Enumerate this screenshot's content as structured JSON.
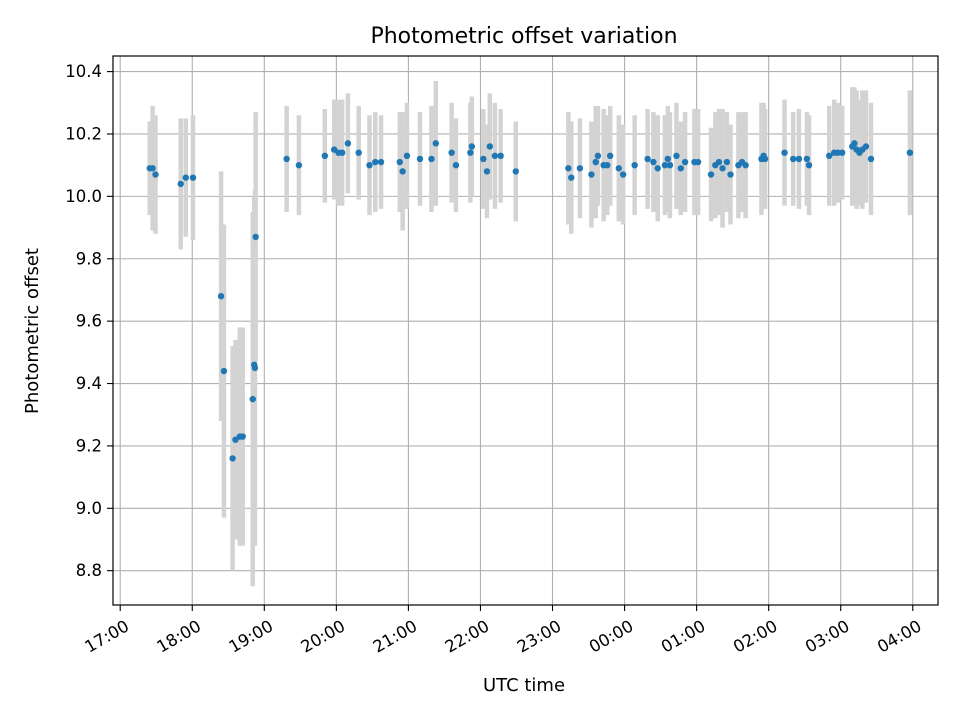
{
  "chart_data": {
    "type": "scatter",
    "title": "Photometric offset variation",
    "xlabel": "UTC time",
    "ylabel": "Photometric offset",
    "x_start": "17:00",
    "xlim": [
      -0.1,
      11.35
    ],
    "ylim": [
      8.69,
      10.45
    ],
    "x_ticks": [
      0,
      1,
      2,
      3,
      4,
      5,
      6,
      7,
      8,
      9,
      10,
      11
    ],
    "x_tick_labels": [
      "17:00",
      "18:00",
      "19:00",
      "20:00",
      "21:00",
      "22:00",
      "23:00",
      "00:00",
      "01:00",
      "02:00",
      "03:00",
      "04:00"
    ],
    "y_ticks": [
      8.8,
      9.0,
      9.2,
      9.4,
      9.6,
      9.8,
      10.0,
      10.2,
      10.4
    ],
    "y_tick_labels": [
      "8.8",
      "9.0",
      "9.2",
      "9.4",
      "9.6",
      "9.8",
      "10.0",
      "10.2",
      "10.4"
    ],
    "grid": true,
    "colors": {
      "point": "#1f77b4",
      "errorbar": "#d3d3d3",
      "grid": "#b0b0b0"
    },
    "series": [
      {
        "points": [
          [
            0.41,
            10.09,
            0.15
          ],
          [
            0.45,
            10.09,
            0.2
          ],
          [
            0.49,
            10.07,
            0.19
          ],
          [
            0.84,
            10.04,
            0.21
          ],
          [
            0.91,
            10.06,
            0.19
          ],
          [
            1.01,
            10.06,
            0.2
          ],
          [
            1.4,
            9.68,
            0.4
          ],
          [
            1.44,
            9.44,
            0.47
          ],
          [
            1.56,
            9.16,
            0.36
          ],
          [
            1.6,
            9.22,
            0.32
          ],
          [
            1.66,
            9.23,
            0.35
          ],
          [
            1.7,
            9.23,
            0.35
          ],
          [
            1.84,
            9.35,
            0.6
          ],
          [
            1.86,
            9.46,
            0.54
          ],
          [
            1.87,
            9.45,
            0.57
          ],
          [
            1.88,
            9.87,
            0.4
          ],
          [
            2.31,
            10.12,
            0.17
          ],
          [
            2.48,
            10.1,
            0.16
          ],
          [
            2.84,
            10.13,
            0.15
          ],
          [
            2.97,
            10.15,
            0.16
          ],
          [
            3.03,
            10.14,
            0.17
          ],
          [
            3.08,
            10.14,
            0.17
          ],
          [
            3.16,
            10.17,
            0.16
          ],
          [
            3.31,
            10.14,
            0.15
          ],
          [
            3.46,
            10.1,
            0.16
          ],
          [
            3.54,
            10.11,
            0.16
          ],
          [
            3.62,
            10.11,
            0.15
          ],
          [
            3.88,
            10.11,
            0.16
          ],
          [
            3.92,
            10.08,
            0.19
          ],
          [
            3.98,
            10.13,
            0.17
          ],
          [
            4.16,
            10.12,
            0.15
          ],
          [
            4.32,
            10.12,
            0.17
          ],
          [
            4.38,
            10.17,
            0.2
          ],
          [
            4.6,
            10.14,
            0.16
          ],
          [
            4.66,
            10.1,
            0.15
          ],
          [
            4.86,
            10.14,
            0.16
          ],
          [
            4.88,
            10.16,
            0.16
          ],
          [
            5.04,
            10.12,
            0.16
          ],
          [
            5.09,
            10.08,
            0.15
          ],
          [
            5.13,
            10.16,
            0.17
          ],
          [
            5.2,
            10.13,
            0.17
          ],
          [
            5.28,
            10.13,
            0.15
          ],
          [
            5.49,
            10.08,
            0.16
          ],
          [
            6.22,
            10.09,
            0.18
          ],
          [
            6.26,
            10.06,
            0.18
          ],
          [
            6.38,
            10.09,
            0.16
          ],
          [
            6.54,
            10.07,
            0.17
          ],
          [
            6.6,
            10.11,
            0.18
          ],
          [
            6.63,
            10.13,
            0.16
          ],
          [
            6.71,
            10.1,
            0.18
          ],
          [
            6.76,
            10.1,
            0.16
          ],
          [
            6.8,
            10.13,
            0.16
          ],
          [
            6.92,
            10.09,
            0.17
          ],
          [
            6.98,
            10.07,
            0.16
          ],
          [
            7.14,
            10.1,
            0.16
          ],
          [
            7.32,
            10.12,
            0.16
          ],
          [
            7.4,
            10.11,
            0.16
          ],
          [
            7.46,
            10.09,
            0.17
          ],
          [
            7.56,
            10.1,
            0.16
          ],
          [
            7.6,
            10.12,
            0.17
          ],
          [
            7.63,
            10.1,
            0.17
          ],
          [
            7.72,
            10.13,
            0.17
          ],
          [
            7.78,
            10.09,
            0.15
          ],
          [
            7.84,
            10.11,
            0.16
          ],
          [
            7.97,
            10.11,
            0.17
          ],
          [
            8.02,
            10.11,
            0.17
          ],
          [
            8.2,
            10.07,
            0.15
          ],
          [
            8.26,
            10.1,
            0.17
          ],
          [
            8.31,
            10.11,
            0.17
          ],
          [
            8.36,
            10.09,
            0.19
          ],
          [
            8.42,
            10.11,
            0.16
          ],
          [
            8.47,
            10.07,
            0.16
          ],
          [
            8.58,
            10.1,
            0.17
          ],
          [
            8.63,
            10.11,
            0.16
          ],
          [
            8.68,
            10.1,
            0.17
          ],
          [
            8.9,
            10.12,
            0.18
          ],
          [
            8.93,
            10.13,
            0.17
          ],
          [
            8.95,
            10.12,
            0.16
          ],
          [
            9.22,
            10.14,
            0.17
          ],
          [
            9.34,
            10.12,
            0.15
          ],
          [
            9.42,
            10.12,
            0.16
          ],
          [
            9.53,
            10.12,
            0.15
          ],
          [
            9.56,
            10.1,
            0.16
          ],
          [
            9.84,
            10.13,
            0.16
          ],
          [
            9.91,
            10.14,
            0.17
          ],
          [
            9.96,
            10.14,
            0.16
          ],
          [
            10.02,
            10.14,
            0.15
          ],
          [
            10.16,
            10.16,
            0.19
          ],
          [
            10.19,
            10.17,
            0.18
          ],
          [
            10.22,
            10.15,
            0.19
          ],
          [
            10.26,
            10.14,
            0.17
          ],
          [
            10.3,
            10.15,
            0.19
          ],
          [
            10.35,
            10.16,
            0.18
          ],
          [
            10.42,
            10.12,
            0.18
          ],
          [
            10.96,
            10.14,
            0.2
          ]
        ]
      }
    ]
  }
}
